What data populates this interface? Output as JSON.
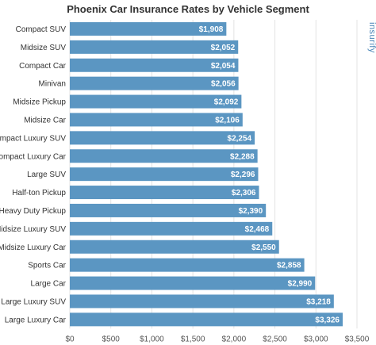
{
  "chart_data": {
    "type": "bar",
    "orientation": "horizontal",
    "title": "Phoenix Car Insurance Rates by Vehicle Segment",
    "categories": [
      "Compact SUV",
      "Midsize SUV",
      "Compact Car",
      "Minivan",
      "Midsize Pickup",
      "Midsize Car",
      "Compact Luxury SUV",
      "Compact Luxury Car",
      "Large SUV",
      "Half-ton Pickup",
      "Heavy Duty Pickup",
      "Midsize Luxury SUV",
      "Midsize Luxury Car",
      "Sports Car",
      "Large Car",
      "Large Luxury SUV",
      "Large Luxury Car"
    ],
    "values": [
      1908,
      2052,
      2054,
      2056,
      2092,
      2106,
      2254,
      2288,
      2296,
      2306,
      2390,
      2468,
      2550,
      2858,
      2990,
      3218,
      3326
    ],
    "value_labels": [
      "$1,908",
      "$2,052",
      "$2,054",
      "$2,056",
      "$2,092",
      "$2,106",
      "$2,254",
      "$2,288",
      "$2,296",
      "$2,306",
      "$2,390",
      "$2,468",
      "$2,550",
      "$2,858",
      "$2,990",
      "$3,218",
      "$3,326"
    ],
    "xlim": [
      0,
      3500
    ],
    "x_ticks": [
      0,
      500,
      1000,
      1500,
      2000,
      2500,
      3000,
      3500
    ],
    "x_tick_labels": [
      "$0",
      "$500",
      "$1,000",
      "$1,500",
      "$2,000",
      "$2,500",
      "$3,000",
      "$3,500"
    ],
    "xlabel": "",
    "ylabel": "",
    "grid": "vertical",
    "bar_color": "#5b96c2",
    "watermark": "insurify"
  }
}
